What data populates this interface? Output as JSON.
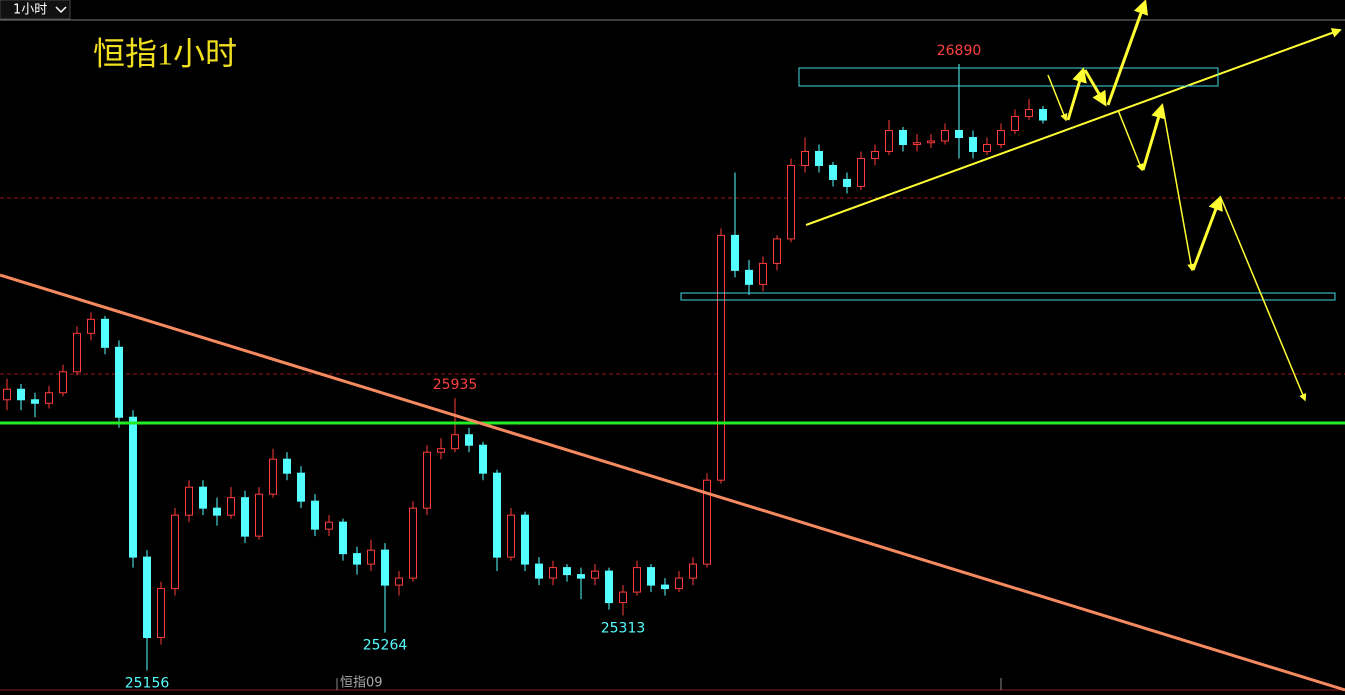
{
  "chart_data": {
    "type": "candlestick",
    "timeframe": "1小时",
    "title": "恒指1小时",
    "footer_label": "恒指09",
    "ylim": [
      25100,
      27016
    ],
    "up_color": "#ff3b3b",
    "down_color": "#54ffff",
    "candles": [
      [
        25930,
        25990,
        25900,
        25960
      ],
      [
        25960,
        25975,
        25900,
        25930
      ],
      [
        25930,
        25950,
        25880,
        25920
      ],
      [
        25920,
        25970,
        25905,
        25950
      ],
      [
        25950,
        26030,
        25940,
        26010
      ],
      [
        26010,
        26140,
        26000,
        26120
      ],
      [
        26120,
        26180,
        26100,
        26160
      ],
      [
        26160,
        26170,
        26060,
        26080
      ],
      [
        26080,
        26100,
        25850,
        25880
      ],
      [
        25880,
        25900,
        25450,
        25480
      ],
      [
        25480,
        25500,
        25156,
        25250
      ],
      [
        25250,
        25410,
        25230,
        25390
      ],
      [
        25390,
        25620,
        25370,
        25600
      ],
      [
        25600,
        25700,
        25580,
        25680
      ],
      [
        25680,
        25700,
        25600,
        25620
      ],
      [
        25620,
        25650,
        25570,
        25600
      ],
      [
        25600,
        25680,
        25590,
        25650
      ],
      [
        25650,
        25670,
        25520,
        25540
      ],
      [
        25540,
        25680,
        25530,
        25660
      ],
      [
        25660,
        25790,
        25650,
        25760
      ],
      [
        25760,
        25780,
        25700,
        25720
      ],
      [
        25720,
        25740,
        25620,
        25640
      ],
      [
        25640,
        25660,
        25540,
        25560
      ],
      [
        25560,
        25600,
        25540,
        25580
      ],
      [
        25580,
        25590,
        25470,
        25490
      ],
      [
        25490,
        25510,
        25430,
        25460
      ],
      [
        25460,
        25530,
        25440,
        25500
      ],
      [
        25500,
        25520,
        25264,
        25400
      ],
      [
        25400,
        25440,
        25370,
        25420
      ],
      [
        25420,
        25640,
        25410,
        25620
      ],
      [
        25620,
        25800,
        25600,
        25780
      ],
      [
        25780,
        25820,
        25760,
        25790
      ],
      [
        25790,
        25935,
        25780,
        25830
      ],
      [
        25830,
        25850,
        25780,
        25800
      ],
      [
        25800,
        25810,
        25700,
        25720
      ],
      [
        25720,
        25730,
        25440,
        25480
      ],
      [
        25480,
        25620,
        25470,
        25600
      ],
      [
        25600,
        25610,
        25440,
        25460
      ],
      [
        25460,
        25480,
        25400,
        25420
      ],
      [
        25420,
        25470,
        25400,
        25450
      ],
      [
        25450,
        25460,
        25410,
        25430
      ],
      [
        25430,
        25450,
        25360,
        25420
      ],
      [
        25420,
        25460,
        25400,
        25440
      ],
      [
        25440,
        25450,
        25330,
        25350
      ],
      [
        25350,
        25400,
        25313,
        25380
      ],
      [
        25380,
        25470,
        25370,
        25450
      ],
      [
        25450,
        25460,
        25380,
        25400
      ],
      [
        25400,
        25420,
        25370,
        25390
      ],
      [
        25390,
        25440,
        25380,
        25420
      ],
      [
        25420,
        25480,
        25400,
        25460
      ],
      [
        25460,
        25720,
        25450,
        25700
      ],
      [
        25700,
        26420,
        25690,
        26400
      ],
      [
        26400,
        26580,
        26280,
        26300
      ],
      [
        26300,
        26330,
        26230,
        26260
      ],
      [
        26260,
        26340,
        26240,
        26320
      ],
      [
        26320,
        26400,
        26300,
        26390
      ],
      [
        26390,
        26620,
        26380,
        26600
      ],
      [
        26600,
        26680,
        26580,
        26640
      ],
      [
        26640,
        26660,
        26580,
        26600
      ],
      [
        26600,
        26610,
        26540,
        26560
      ],
      [
        26560,
        26580,
        26520,
        26540
      ],
      [
        26540,
        26640,
        26530,
        26620
      ],
      [
        26620,
        26660,
        26600,
        26640
      ],
      [
        26640,
        26730,
        26630,
        26700
      ],
      [
        26700,
        26710,
        26640,
        26660
      ],
      [
        26660,
        26690,
        26640,
        26665
      ],
      [
        26665,
        26690,
        26650,
        26670
      ],
      [
        26670,
        26720,
        26660,
        26700
      ],
      [
        26700,
        26890,
        26620,
        26680
      ],
      [
        26680,
        26700,
        26620,
        26640
      ],
      [
        26640,
        26680,
        26630,
        26660
      ],
      [
        26660,
        26720,
        26650,
        26700
      ],
      [
        26700,
        26760,
        26690,
        26740
      ],
      [
        26740,
        26790,
        26730,
        26760
      ],
      [
        26760,
        26770,
        26720,
        26730
      ]
    ]
  }
}
